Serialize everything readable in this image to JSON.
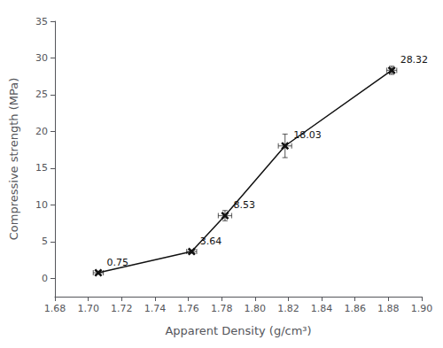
{
  "chart_data": {
    "type": "line",
    "x": [
      1.706,
      1.762,
      1.782,
      1.818,
      1.882
    ],
    "values": [
      0.75,
      3.64,
      8.53,
      18.03,
      28.32
    ],
    "yerr": [
      0.2,
      0.2,
      0.7,
      1.6,
      0.55
    ],
    "xerr": [
      0.003,
      0.003,
      0.004,
      0.004,
      0.003
    ],
    "data_labels": true,
    "xlabel": "Apparent Density (g/cm³)",
    "ylabel": "Compressive strength (MPa)",
    "xlim": [
      1.68,
      1.9
    ],
    "ylim": [
      -2.5,
      35
    ],
    "xticks": [
      1.68,
      {
        "value": 1.7,
        "label": "1.70"
      },
      1.72,
      1.74,
      1.76,
      1.78,
      {
        "value": 1.8,
        "label": "1.80"
      },
      1.82,
      1.84,
      1.86,
      1.88,
      {
        "value": 1.9,
        "label": "1.90"
      }
    ],
    "yticks": [
      0,
      5,
      10,
      15,
      20,
      25,
      30,
      35
    ],
    "color": "#111111",
    "marker": "x",
    "grid": false
  }
}
